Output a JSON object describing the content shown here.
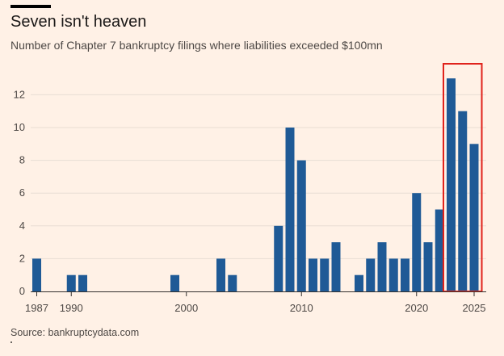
{
  "header": {
    "title": "Seven isn't heaven",
    "subtitle": "Number of Chapter 7 bankruptcy filings where liabilities exceeded $100mn"
  },
  "footer": {
    "source": "Source: bankruptcydata.com"
  },
  "colors": {
    "bar": "#1f5a96",
    "highlight": "#e0231c",
    "background": "#fff1e6"
  },
  "chart_data": {
    "type": "bar",
    "title": "Seven isn't heaven",
    "subtitle": "Number of Chapter 7 bankruptcy filings where liabilities exceeded $100mn",
    "xlabel": "",
    "ylabel": "",
    "categories": [
      1987,
      1988,
      1989,
      1990,
      1991,
      1992,
      1993,
      1994,
      1995,
      1996,
      1997,
      1998,
      1999,
      2000,
      2001,
      2002,
      2003,
      2004,
      2005,
      2006,
      2007,
      2008,
      2009,
      2010,
      2011,
      2012,
      2013,
      2014,
      2015,
      2016,
      2017,
      2018,
      2019,
      2020,
      2021,
      2022,
      2023,
      2024,
      2025
    ],
    "values": [
      2,
      0,
      0,
      1,
      1,
      0,
      0,
      0,
      0,
      0,
      0,
      0,
      1,
      0,
      0,
      0,
      2,
      1,
      0,
      0,
      0,
      4,
      10,
      8,
      2,
      2,
      3,
      0,
      1,
      2,
      3,
      2,
      2,
      6,
      3,
      5,
      13,
      11,
      9
    ],
    "x_tick_labels": [
      "1987",
      "1990",
      "2000",
      "2010",
      "2020",
      "2025"
    ],
    "y_ticks": [
      0,
      2,
      4,
      6,
      8,
      10,
      12
    ],
    "ylim": [
      0,
      13.8
    ],
    "grid": true,
    "highlight": {
      "from": 2023,
      "to": 2025
    }
  }
}
